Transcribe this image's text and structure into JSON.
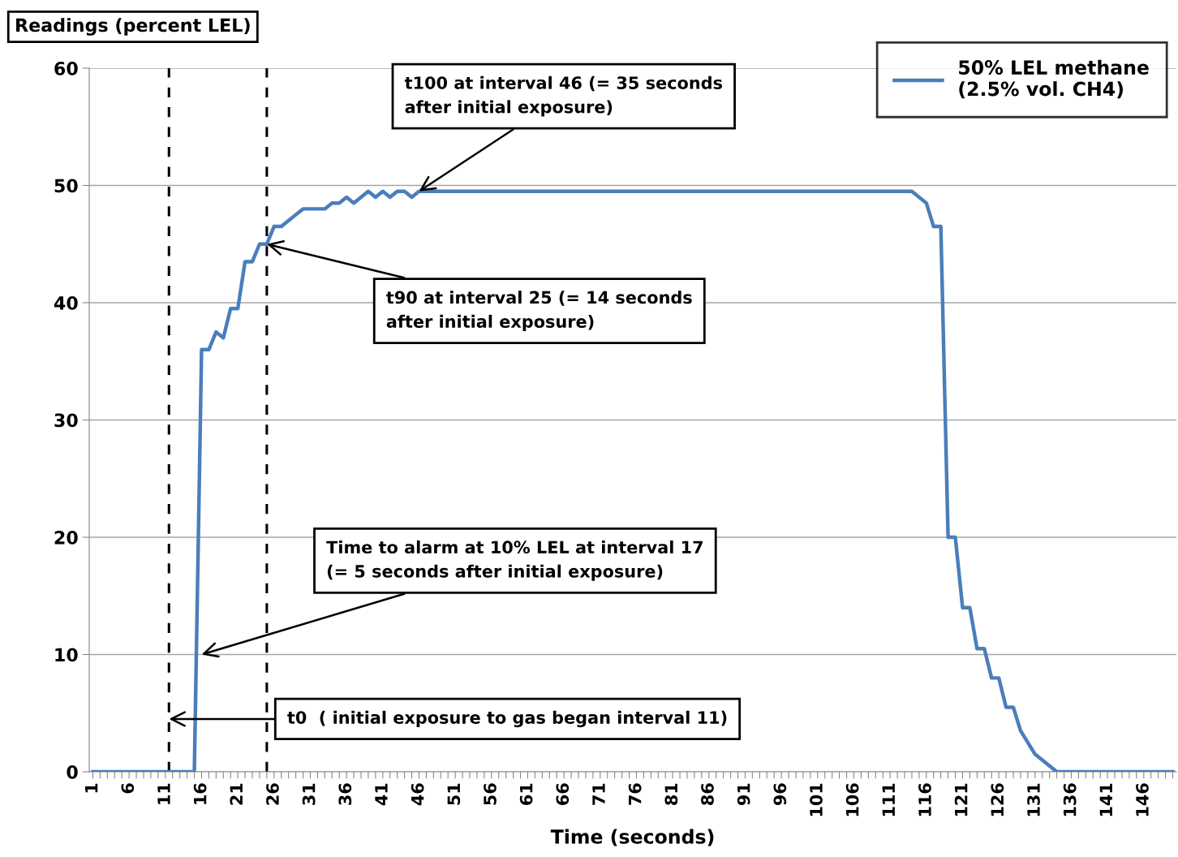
{
  "chart_data": {
    "type": "line",
    "ylabel": "Readings (percent LEL)",
    "xlabel": "Time (seconds)",
    "x": [
      1,
      2,
      3,
      4,
      5,
      6,
      7,
      8,
      9,
      10,
      11,
      12,
      13,
      14,
      15,
      16,
      17,
      18,
      19,
      20,
      21,
      22,
      23,
      24,
      25,
      26,
      27,
      28,
      29,
      30,
      31,
      32,
      33,
      34,
      35,
      36,
      37,
      38,
      39,
      40,
      41,
      42,
      43,
      44,
      45,
      46,
      47,
      48,
      49,
      50,
      51,
      52,
      53,
      54,
      55,
      56,
      57,
      58,
      59,
      60,
      61,
      62,
      63,
      64,
      65,
      66,
      67,
      68,
      69,
      70,
      71,
      72,
      73,
      74,
      75,
      76,
      77,
      78,
      79,
      80,
      81,
      82,
      83,
      84,
      85,
      86,
      87,
      88,
      89,
      90,
      91,
      92,
      93,
      94,
      95,
      96,
      97,
      98,
      99,
      100,
      101,
      102,
      103,
      104,
      105,
      106,
      107,
      108,
      109,
      110,
      111,
      112,
      113,
      114,
      115,
      116,
      117,
      118,
      119,
      120,
      121,
      122,
      123,
      124,
      125,
      126,
      127,
      128,
      129,
      130,
      131,
      132,
      133,
      134,
      135,
      136,
      137,
      138,
      139,
      140,
      141,
      142,
      143,
      144,
      145,
      146,
      147,
      148,
      149,
      150
    ],
    "series": [
      {
        "name": "50% LEL methane\n(2.5% vol. CH4)",
        "color": "#4a7ebb",
        "values": [
          0,
          0,
          0,
          0,
          0,
          0,
          0,
          0,
          0,
          0,
          0,
          0,
          0,
          0,
          0,
          36,
          36,
          37.5,
          37,
          39.5,
          39.5,
          43.5,
          43.5,
          45,
          45,
          46.5,
          46.5,
          47,
          47.5,
          48,
          48,
          48,
          48,
          48.5,
          48.5,
          49,
          48.5,
          49,
          49.5,
          49,
          49.5,
          49,
          49.5,
          49.5,
          49,
          49.5,
          49.5,
          49.5,
          49.5,
          49.5,
          49.5,
          49.5,
          49.5,
          49.5,
          49.5,
          49.5,
          49.5,
          49.5,
          49.5,
          49.5,
          49.5,
          49.5,
          49.5,
          49.5,
          49.5,
          49.5,
          49.5,
          49.5,
          49.5,
          49.5,
          49.5,
          49.5,
          49.5,
          49.5,
          49.5,
          49.5,
          49.5,
          49.5,
          49.5,
          49.5,
          49.5,
          49.5,
          49.5,
          49.5,
          49.5,
          49.5,
          49.5,
          49.5,
          49.5,
          49.5,
          49.5,
          49.5,
          49.5,
          49.5,
          49.5,
          49.5,
          49.5,
          49.5,
          49.5,
          49.5,
          49.5,
          49.5,
          49.5,
          49.5,
          49.5,
          49.5,
          49.5,
          49.5,
          49.5,
          49.5,
          49.5,
          49.5,
          49.5,
          49.5,
          49,
          48.5,
          46.5,
          46.5,
          20,
          20,
          14,
          14,
          10.5,
          10.5,
          8,
          8,
          5.5,
          5.5,
          3.5,
          2.5,
          1.5,
          1,
          0.5,
          0,
          0,
          0,
          0,
          0,
          0,
          0,
          0,
          0,
          0,
          0,
          0,
          0,
          0,
          0,
          0,
          0
        ]
      }
    ],
    "xlim": [
      0.5,
      150.5
    ],
    "xticks": [
      1,
      {
        "value": 2,
        "label": null
      },
      {
        "value": 3,
        "label": null
      },
      {
        "value": 4,
        "label": null
      },
      {
        "value": 5,
        "label": null
      },
      6,
      {
        "value": 7,
        "label": null
      },
      {
        "value": 8,
        "label": null
      },
      {
        "value": 9,
        "label": null
      },
      {
        "value": 10,
        "label": null
      },
      11,
      {
        "value": 12,
        "label": null
      },
      {
        "value": 13,
        "label": null
      },
      {
        "value": 14,
        "label": null
      },
      {
        "value": 15,
        "label": null
      },
      16,
      {
        "value": 17,
        "label": null
      },
      {
        "value": 18,
        "label": null
      },
      {
        "value": 19,
        "label": null
      },
      {
        "value": 20,
        "label": null
      },
      21,
      {
        "value": 22,
        "label": null
      },
      {
        "value": 23,
        "label": null
      },
      {
        "value": 24,
        "label": null
      },
      {
        "value": 25,
        "label": null
      },
      26,
      {
        "value": 27,
        "label": null
      },
      {
        "value": 28,
        "label": null
      },
      {
        "value": 29,
        "label": null
      },
      {
        "value": 30,
        "label": null
      },
      31,
      {
        "value": 32,
        "label": null
      },
      {
        "value": 33,
        "label": null
      },
      {
        "value": 34,
        "label": null
      },
      {
        "value": 35,
        "label": null
      },
      36,
      {
        "value": 37,
        "label": null
      },
      {
        "value": 38,
        "label": null
      },
      {
        "value": 39,
        "label": null
      },
      {
        "value": 40,
        "label": null
      },
      41,
      {
        "value": 42,
        "label": null
      },
      {
        "value": 43,
        "label": null
      },
      {
        "value": 44,
        "label": null
      },
      {
        "value": 45,
        "label": null
      },
      46,
      {
        "value": 47,
        "label": null
      },
      {
        "value": 48,
        "label": null
      },
      {
        "value": 49,
        "label": null
      },
      {
        "value": 50,
        "label": null
      },
      51,
      {
        "value": 52,
        "label": null
      },
      {
        "value": 53,
        "label": null
      },
      {
        "value": 54,
        "label": null
      },
      {
        "value": 55,
        "label": null
      },
      56,
      {
        "value": 57,
        "label": null
      },
      {
        "value": 58,
        "label": null
      },
      {
        "value": 59,
        "label": null
      },
      {
        "value": 60,
        "label": null
      },
      61,
      {
        "value": 62,
        "label": null
      },
      {
        "value": 63,
        "label": null
      },
      {
        "value": 64,
        "label": null
      },
      {
        "value": 65,
        "label": null
      },
      66,
      {
        "value": 67,
        "label": null
      },
      {
        "value": 68,
        "label": null
      },
      {
        "value": 69,
        "label": null
      },
      {
        "value": 70,
        "label": null
      },
      71,
      {
        "value": 72,
        "label": null
      },
      {
        "value": 73,
        "label": null
      },
      {
        "value": 74,
        "label": null
      },
      {
        "value": 75,
        "label": null
      },
      76,
      {
        "value": 77,
        "label": null
      },
      {
        "value": 78,
        "label": null
      },
      {
        "value": 79,
        "label": null
      },
      {
        "value": 80,
        "label": null
      },
      81,
      {
        "value": 82,
        "label": null
      },
      {
        "value": 83,
        "label": null
      },
      {
        "value": 84,
        "label": null
      },
      {
        "value": 85,
        "label": null
      },
      86,
      {
        "value": 87,
        "label": null
      },
      {
        "value": 88,
        "label": null
      },
      {
        "value": 89,
        "label": null
      },
      {
        "value": 90,
        "label": null
      },
      91,
      {
        "value": 92,
        "label": null
      },
      {
        "value": 93,
        "label": null
      },
      {
        "value": 94,
        "label": null
      },
      {
        "value": 95,
        "label": null
      },
      96,
      {
        "value": 97,
        "label": null
      },
      {
        "value": 98,
        "label": null
      },
      {
        "value": 99,
        "label": null
      },
      {
        "value": 100,
        "label": null
      },
      101,
      {
        "value": 102,
        "label": null
      },
      {
        "value": 103,
        "label": null
      },
      {
        "value": 104,
        "label": null
      },
      {
        "value": 105,
        "label": null
      },
      106,
      {
        "value": 107,
        "label": null
      },
      {
        "value": 108,
        "label": null
      },
      {
        "value": 109,
        "label": null
      },
      {
        "value": 110,
        "label": null
      },
      111,
      {
        "value": 112,
        "label": null
      },
      {
        "value": 113,
        "label": null
      },
      {
        "value": 114,
        "label": null
      },
      {
        "value": 115,
        "label": null
      },
      116,
      {
        "value": 117,
        "label": null
      },
      {
        "value": 118,
        "label": null
      },
      {
        "value": 119,
        "label": null
      },
      {
        "value": 120,
        "label": null
      },
      121,
      {
        "value": 122,
        "label": null
      },
      {
        "value": 123,
        "label": null
      },
      {
        "value": 124,
        "label": null
      },
      {
        "value": 125,
        "label": null
      },
      126,
      {
        "value": 127,
        "label": null
      },
      {
        "value": 128,
        "label": null
      },
      {
        "value": 129,
        "label": null
      },
      {
        "value": 130,
        "label": null
      },
      131,
      {
        "value": 132,
        "label": null
      },
      {
        "value": 133,
        "label": null
      },
      {
        "value": 134,
        "label": null
      },
      {
        "value": 135,
        "label": null
      },
      136,
      {
        "value": 137,
        "label": null
      },
      {
        "value": 138,
        "label": null
      },
      {
        "value": 139,
        "label": null
      },
      {
        "value": 140,
        "label": null
      },
      141,
      {
        "value": 142,
        "label": null
      },
      {
        "value": 143,
        "label": null
      },
      {
        "value": 144,
        "label": null
      },
      {
        "value": 145,
        "label": null
      },
      146,
      {
        "value": 147,
        "label": null
      },
      {
        "value": 148,
        "label": null
      },
      {
        "value": 149,
        "label": null
      },
      {
        "value": 150,
        "label": null
      }
    ],
    "ylim": [
      0,
      60
    ],
    "yticks": [
      0,
      10,
      20,
      30,
      40,
      50,
      60
    ],
    "grid": "y",
    "legend": "top right",
    "marker": "none",
    "line_style": "solid",
    "ref_lines": [
      {
        "axis": "x",
        "value": 11.5,
        "color": "#000000",
        "line_style": "dashed"
      },
      {
        "axis": "x",
        "value": 25,
        "color": "#000000",
        "line_style": "dashed"
      }
    ],
    "annotations": [
      {
        "text": "t100 at interval 46 (= 35 seconds\nafter initial exposure)",
        "x": 46,
        "y": 49.5
      },
      {
        "text": "t90 at interval 25 (= 14 seconds\nafter initial exposure)",
        "x": 25,
        "y": 45
      },
      {
        "text": "Time to alarm at 10% LEL at interval 17\n(= 5 seconds after initial exposure)",
        "x": 16,
        "y": 10
      },
      {
        "text": "t0  ( initial exposure to gas began interval 11)",
        "x": 11.5,
        "y": 4.5
      }
    ]
  }
}
